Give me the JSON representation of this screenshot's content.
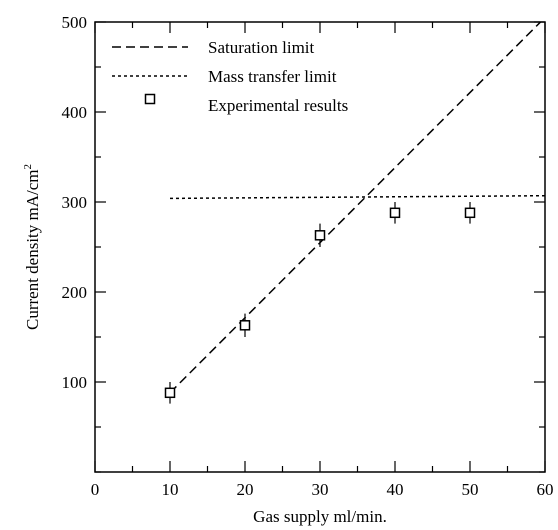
{
  "chart_data": {
    "type": "scatter",
    "xlabel": "Gas supply ml/min.",
    "ylabel": "Current density mA/cm",
    "ylabel_superscript": "2",
    "xlim": [
      0,
      60
    ],
    "ylim": [
      0,
      500
    ],
    "x_ticks": [
      0,
      10,
      20,
      30,
      40,
      50,
      60
    ],
    "y_ticks": [
      100,
      200,
      300,
      400,
      500
    ],
    "x_minor_step": 5,
    "y_minor_step": 50,
    "grid": false,
    "legend_position": "top-left",
    "series": [
      {
        "name": "Saturation limit",
        "kind": "line",
        "style": "dashed",
        "x": [
          10,
          60
        ],
        "y": [
          88,
          505
        ]
      },
      {
        "name": "Mass transfer limit",
        "kind": "line",
        "style": "dotted",
        "x": [
          10,
          60
        ],
        "y": [
          304,
          307
        ]
      },
      {
        "name": "Experimental results",
        "kind": "markers",
        "marker": "open-square",
        "x": [
          10,
          20,
          30,
          40,
          50
        ],
        "y": [
          88,
          163,
          263,
          288,
          288
        ],
        "error": [
          12,
          13,
          13,
          12,
          12
        ]
      }
    ]
  }
}
